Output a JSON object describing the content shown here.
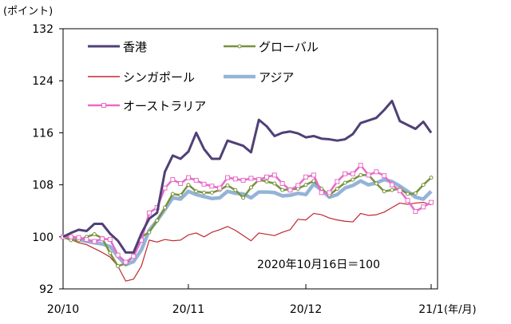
{
  "chart_data": {
    "type": "line",
    "ylabel": "(ポイント)",
    "xunit": "(年/月)",
    "annotation": "2020年10月16日＝100",
    "ylim": [
      92,
      132
    ],
    "yticks": [
      92,
      100,
      108,
      116,
      124,
      132
    ],
    "xticks": [
      {
        "label": "20/10",
        "index": 0
      },
      {
        "label": "20/11",
        "index": 16
      },
      {
        "label": "20/12",
        "index": 31
      },
      {
        "label": "21/1",
        "index": 47
      }
    ],
    "grid": false,
    "legend_position": "top-left",
    "series": [
      {
        "name": "香港",
        "color": "#504077",
        "width": 3,
        "marker": "none",
        "values": [
          100,
          100.6,
          101.1,
          100.9,
          102,
          102,
          100.5,
          99.4,
          97.6,
          97.6,
          100.5,
          102.8,
          103.7,
          110,
          112.5,
          112,
          113.1,
          116,
          113.5,
          112,
          112,
          114.8,
          114.4,
          114.0,
          113,
          118,
          117,
          115.5,
          116,
          116.2,
          115.9,
          115.3,
          115.5,
          115.1,
          115,
          114.8,
          115,
          115.8,
          117.5,
          117.9,
          118.3,
          119.5,
          120.9,
          117.8,
          117.2,
          116.6,
          117.7,
          116.0
        ]
      },
      {
        "name": "グローバル",
        "color": "#77933c",
        "width": 2.5,
        "marker": "circle",
        "values": [
          100,
          99.5,
          99.5,
          100,
          100.4,
          99.8,
          97.5,
          95.5,
          95.9,
          97,
          100,
          100.7,
          102.5,
          104.5,
          106.6,
          106.4,
          108,
          107,
          106.8,
          106.8,
          107.2,
          107.9,
          107.2,
          106,
          107.6,
          108.8,
          108.5,
          108.2,
          107.2,
          107.3,
          107.4,
          108,
          108.6,
          107.4,
          106.4,
          107.4,
          108.3,
          108.8,
          109.5,
          109.5,
          108.2,
          107,
          107.2,
          107.4,
          106.6,
          106.7,
          108,
          109.1
        ]
      },
      {
        "name": "シンガポール",
        "color": "#c0282d",
        "width": 1.2,
        "marker": "none",
        "values": [
          100,
          99.6,
          99.1,
          98.8,
          98.2,
          97.6,
          96.9,
          95.5,
          93.2,
          93.5,
          95.5,
          99.5,
          99.2,
          99.6,
          99.4,
          99.5,
          100.3,
          100.6,
          100,
          100.7,
          101.1,
          101.6,
          101,
          100.2,
          99.4,
          100.6,
          100.4,
          100.2,
          100.7,
          101.1,
          102.7,
          102.6,
          103.6,
          103.4,
          102.9,
          102.6,
          102.4,
          102.3,
          103.6,
          103.3,
          103.4,
          103.8,
          104.5,
          105.2,
          105,
          105.2,
          105.3,
          104.9
        ]
      },
      {
        "name": "アジア",
        "color": "#95b3d7",
        "width": 4.5,
        "marker": "none",
        "values": [
          100,
          99.8,
          99.6,
          99.3,
          99.1,
          98.9,
          98.5,
          97,
          95.7,
          96.2,
          98,
          101,
          102.5,
          104.2,
          106,
          105.8,
          107,
          106.5,
          106.2,
          105.9,
          106,
          107,
          106.7,
          106.6,
          106,
          106.9,
          106.9,
          106.8,
          106.3,
          106.4,
          106.7,
          106.5,
          108.1,
          107.2,
          106.1,
          106.5,
          107.5,
          107.9,
          108.6,
          108,
          108.3,
          108.8,
          108.5,
          107.8,
          107,
          106.1,
          105.8,
          107
        ]
      },
      {
        "name": "オーストラリア",
        "color": "#e86ac8",
        "width": 2.5,
        "marker": "square",
        "values": [
          100,
          100,
          99.9,
          99.6,
          99.3,
          99.7,
          99.6,
          97.2,
          96.1,
          97,
          99.5,
          103.7,
          104.5,
          107.5,
          108.8,
          108.2,
          109.1,
          108.7,
          108.1,
          107.8,
          107.5,
          109.1,
          108.9,
          108.7,
          109,
          108.8,
          109.2,
          109.5,
          108.2,
          107.2,
          107.9,
          109.2,
          109.5,
          106.8,
          106.8,
          108.5,
          109.7,
          109.7,
          111,
          109.5,
          110,
          109.4,
          108,
          107.1,
          105.6,
          103.9,
          104.6,
          105.3
        ]
      }
    ]
  }
}
